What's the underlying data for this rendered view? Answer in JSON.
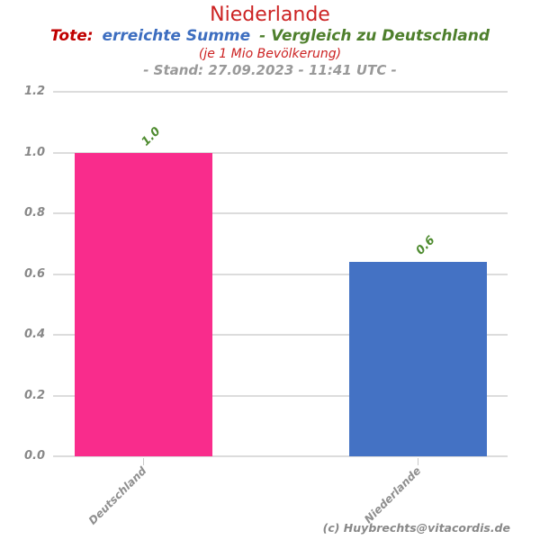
{
  "header": {
    "title": "Niederlande",
    "subtitle": {
      "part1": "Tote:",
      "part2": "erreichte Summe",
      "part3": "- Vergleich zu Deutschland"
    },
    "unit_line": "(je 1 Mio Bevölkerung)",
    "stand_line": "- Stand: 27.09.2023 - 11:41 UTC -"
  },
  "footer": {
    "credit": "(c) Huybrechts@vitacordis.de"
  },
  "colors": {
    "title_red": "#cc2222",
    "tote_red": "#c00000",
    "summe_blue": "#3d6ec0",
    "vergleich_green": "#4e7f2c",
    "unit_red": "#cc2222",
    "stand_gray": "#999999",
    "ytick_gray": "#888888",
    "xlabel_gray": "#8f8f8f",
    "credit_gray": "#888888",
    "grid_gray": "#dcdcdc",
    "value_label_green": "#4e8b2f"
  },
  "chart_data": {
    "type": "bar",
    "title": "Niederlande",
    "subtitle": "Tote: erreichte Summe - Vergleich zu Deutschland (je 1 Mio Bevölkerung)",
    "categories": [
      "Deutschland",
      "Niederlande"
    ],
    "values": [
      1.0,
      0.64
    ],
    "value_labels": [
      "1.0",
      "0.6"
    ],
    "bar_colors": [
      "#f92c8c",
      "#4472c4"
    ],
    "xlabel": "",
    "ylabel": "",
    "ylim": [
      0,
      1.2
    ],
    "yticks": [
      1.2,
      1.0,
      0.8,
      0.6,
      0.4,
      0.2,
      0.0
    ],
    "grid": true,
    "legend": false
  }
}
